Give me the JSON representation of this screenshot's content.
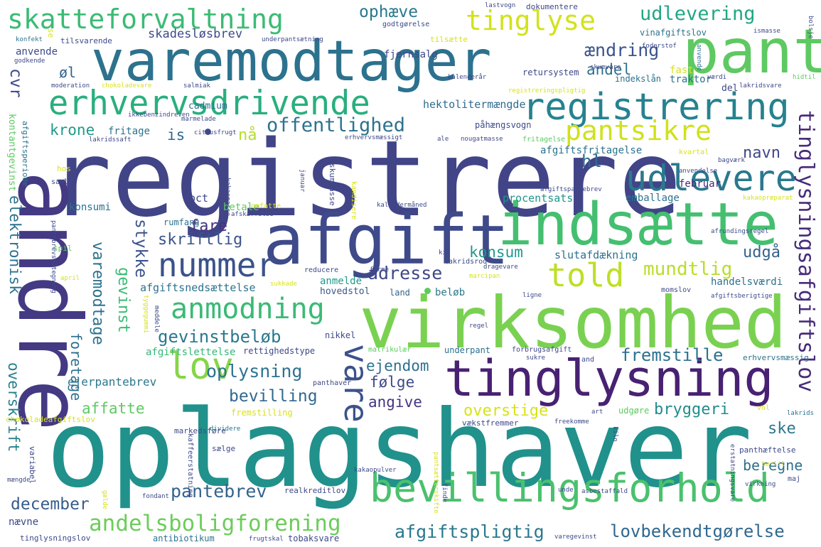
{
  "words": {
    "registrere": {
      "text": "registrere",
      "color": "#414487"
    },
    "oplagshaver": {
      "text": "oplagshaver",
      "color": "#21918c"
    },
    "virksomhed": {
      "text": "virksomhed",
      "color": "#7ad151"
    },
    "andre": {
      "text": "andre",
      "color": "#443983"
    },
    "afgift": {
      "text": "afgift",
      "color": "#3e4a89"
    },
    "varemodtager": {
      "text": "varemodtager",
      "color": "#2c728e"
    },
    "pant": {
      "text": "pant",
      "color": "#5ec962"
    },
    "indsaette": {
      "text": "indsætte",
      "color": "#44bf70"
    },
    "tinglysning": {
      "text": "tinglysning",
      "color": "#482173"
    },
    "bevillingsforhold": {
      "text": "bevillingsforhold",
      "color": "#4ac16d"
    },
    "registrering": {
      "text": "registrering",
      "color": "#26828e"
    },
    "erhvervsdrivende": {
      "text": "erhvervsdrivende",
      "color": "#29af7f"
    },
    "skatteforvaltning": {
      "text": "skatteforvaltning",
      "color": "#3bbb75"
    },
    "tinglyse": {
      "text": "tinglyse",
      "color": "#d2e21b"
    },
    "udlevere": {
      "text": "udlevere",
      "color": "#2a788e"
    },
    "pantsikre": {
      "text": "pantsikre",
      "color": "#d0e11c"
    },
    "nummer": {
      "text": "nummer",
      "color": "#3b528b"
    },
    "told": {
      "text": "told",
      "color": "#bddf26"
    },
    "anmodning": {
      "text": "anmodning",
      "color": "#3aba76"
    },
    "lov": {
      "text": "lov",
      "color": "#86d549"
    },
    "vare": {
      "text": "vare",
      "color": "#3b528b"
    },
    "andelsboligforening": {
      "text": "andelsboligforening",
      "color": "#6ccd5a"
    },
    "offentlighed": {
      "text": "offentlighed",
      "color": "#2c728e"
    },
    "tinglysningsafgiftslov": {
      "text": "tinglysningsafgiftslov",
      "color": "#472c7a"
    },
    "udlevering": {
      "text": "udlevering",
      "color": "#22a785"
    },
    "aendring": {
      "text": "ændring",
      "color": "#3a548c"
    },
    "mundtlig": {
      "text": "mundtlig",
      "color": "#b8de29"
    },
    "adresse": {
      "text": "adresse",
      "color": "#3f4788"
    },
    "gevinstbelob": {
      "text": "gevinstbeløb",
      "color": "#2a788e"
    },
    "oplysning": {
      "text": "oplysning",
      "color": "#2c738e"
    },
    "fremstille": {
      "text": "fremstille",
      "color": "#2c728e"
    },
    "pantebrev": {
      "text": "pantebrev",
      "color": "#33638d"
    },
    "december": {
      "text": "december",
      "color": "#365c8d"
    },
    "afgiftspligtig": {
      "text": "afgiftspligtig",
      "color": "#2a788e"
    },
    "lovbekendtgorelse": {
      "text": "lovbekendtgørelse",
      "color": "#31688e"
    },
    "overstige": {
      "text": "overstige",
      "color": "#d8e219"
    },
    "bryggeri": {
      "text": "bryggeri",
      "color": "#228c8d"
    },
    "angive": {
      "text": "angive",
      "color": "#453581"
    },
    "folge": {
      "text": "følge",
      "color": "#3e4989"
    },
    "ejendom": {
      "text": "ejendom",
      "color": "#2d708e"
    },
    "bevilling": {
      "text": "bevilling",
      "color": "#31688e"
    },
    "affatte": {
      "text": "affatte",
      "color": "#5ec962"
    },
    "ophaeve": {
      "text": "ophæve",
      "color": "#29798e"
    },
    "krone": {
      "text": "krone",
      "color": "#1f9a8a"
    },
    "konsum": {
      "text": "konsum",
      "color": "#1f988b"
    },
    "fare": {
      "text": "fare",
      "color": "#46337f"
    },
    "skriftlig": {
      "text": "skriftlig",
      "color": "#3a548c"
    },
    "stykke": {
      "text": "stykke",
      "color": "#3a538b"
    },
    "gevinst": {
      "text": "gevinst",
      "color": "#3bbb75"
    },
    "varemodtage": {
      "text": "varemodtage",
      "color": "#2c728e"
    },
    "foretage": {
      "text": "foretage",
      "color": "#2d708e"
    },
    "elektronisk": {
      "text": "elektronisk",
      "color": "#2c728e"
    },
    "overskrift": {
      "text": "overskrift",
      "color": "#27808e"
    },
    "cvr": {
      "text": "cvr",
      "color": "#3e4989"
    },
    "andel": {
      "text": "andel",
      "color": "#2d708e"
    },
    "ol": {
      "text": "øl",
      "color": "#33638d"
    },
    "na": {
      "text": "nå",
      "color": "#b5de2b"
    },
    "is": {
      "text": "is",
      "color": "#31688e"
    },
    "hl": {
      "text": "hl",
      "color": "#2f6c8e"
    },
    "navn": {
      "text": "navn",
      "color": "#3e4989"
    },
    "udga": {
      "text": "udgå",
      "color": "#33638d"
    },
    "ske": {
      "text": "ske",
      "color": "#2a788e"
    },
    "beregne": {
      "text": "beregne",
      "color": "#2d708e"
    },
    "skadeslosbrev": {
      "text": "skadesløsbrev",
      "color": "#3e4a89"
    },
    "fjernsalg": {
      "text": "fjernsalg",
      "color": "#3e4989"
    },
    "hektolitermaengde": {
      "text": "hektolitermængde",
      "color": "#2f6c8e"
    },
    "afgiftsfritagelse": {
      "text": "afgiftsfritagelse",
      "color": "#2c728e"
    },
    "emballage": {
      "text": "emballage",
      "color": "#2c728e"
    },
    "februar": {
      "text": "februar",
      "color": "#482677"
    },
    "procentsats": {
      "text": "procentsats",
      "color": "#1f968b"
    },
    "slutafdaekning": {
      "text": "slutafdækning",
      "color": "#2d708e"
    },
    "handelsvaerdi": {
      "text": "handelsværdi",
      "color": "#2d708e"
    },
    "afgiftsnedsaettelse": {
      "text": "afgiftsnedsættelse",
      "color": "#2c728e"
    },
    "afgiftslettelse": {
      "text": "afgiftslettelse",
      "color": "#35b779"
    },
    "rettighedstype": {
      "text": "rettighedstype",
      "color": "#3e4989"
    },
    "hovedstol": {
      "text": "hovedstol",
      "color": "#38598c"
    },
    "anmelde": {
      "text": "anmelde",
      "color": "#1e9c89"
    },
    "belob": {
      "text": "beløb",
      "color": "#2a788e"
    },
    "land": {
      "text": "land",
      "color": "#33638d"
    },
    "ejerpantebrev": {
      "text": "ejerpantebrev",
      "color": "#2a788e"
    },
    "konsumi": {
      "text": "konsumi",
      "color": "#2c728e"
    },
    "pct": {
      "text": "pct",
      "color": "#3e4989"
    },
    "betale": {
      "text": "betale",
      "color": "#5ec962"
    },
    "rumfang": {
      "text": "rumfang",
      "color": "#2c728e"
    },
    "fritage": {
      "text": "fritage",
      "color": "#2c728e"
    },
    "cadmium": {
      "text": "cadmium",
      "color": "#2c728e"
    },
    "pahaengsvogn": {
      "text": "påhængsvogn",
      "color": "#3e4989"
    },
    "anvende": {
      "text": "anvende",
      "color": "#3e4989"
    },
    "del": {
      "text": "del",
      "color": "#3e4989"
    },
    "fast": {
      "text": "fast",
      "color": "#d8e219"
    },
    "traktor": {
      "text": "traktor",
      "color": "#2c728e"
    },
    "indekslan": {
      "text": "indekslån",
      "color": "#2c728e"
    },
    "retursystem": {
      "text": "retursystem",
      "color": "#3e4989"
    },
    "dokumentere": {
      "text": "dokumentere",
      "color": "#3e4989"
    },
    "vinafgiftslov": {
      "text": "vinafgiftslov",
      "color": "#2c728e"
    },
    "godtgorelse": {
      "text": "godtgørelse",
      "color": "#3e4989"
    },
    "tilsaette": {
      "text": "tilsætte",
      "color": "#d8e219"
    },
    "nikkel": {
      "text": "nikkel",
      "color": "#3e4989"
    },
    "nævne": {
      "text": "nævne",
      "color": "#3e4989"
    },
    "antibiotikum": {
      "text": "antibiotikum",
      "color": "#2c728e"
    },
    "tobaksvare": {
      "text": "tobaksvare",
      "color": "#3e4989"
    },
    "udgore": {
      "text": "udgøre",
      "color": "#5ec962"
    },
    "fremstilling": {
      "text": "fremstilling",
      "color": "#d8e219"
    },
    "vaekstfremmer": {
      "text": "vækstfremmer",
      "color": "#3e4989"
    },
    "underpant": {
      "text": "underpant",
      "color": "#2c728e"
    },
    "saelge": {
      "text": "sælge",
      "color": "#3e4989"
    },
    "tinglysningslov": {
      "text": "tinglysningslov",
      "color": "#3e4989"
    },
    "konfekt": {
      "text": "konfekt",
      "color": "#2c728e"
    },
    "godkende": {
      "text": "godkende",
      "color": "#3e4989"
    },
    "anvende2": {
      "text": "anvende",
      "color": "#2c728e"
    },
    "kontantgevinst": {
      "text": "kontantgevinst",
      "color": "#5ec962"
    },
    "afgiftsperiode": {
      "text": "afgiftsperiode",
      "color": "#2c728e"
    },
    "samle": {
      "text": "samle",
      "color": "#3e4989"
    },
    "hos": {
      "text": "hos",
      "color": "#d8e219"
    },
    "spil": {
      "text": "spil",
      "color": "#5ec962"
    },
    "variabel": {
      "text": "variabel",
      "color": "#3e4989"
    },
    "mangde": {
      "text": "mængde",
      "color": "#3e4989"
    },
    "chokoladeafgiftslov": {
      "text": "chokoladeafgiftslov",
      "color": "#d8e219"
    },
    "markedsfore": {
      "text": "markedsføre",
      "color": "#3e4989"
    },
    "kaffeerstatning": {
      "text": "kaffeerstatning",
      "color": "#3e4989"
    },
    "dividere": {
      "text": "dividere",
      "color": "#2c728e"
    },
    "realkreditlov": {
      "text": "realkreditlov",
      "color": "#3e4989"
    },
    "fondant": {
      "text": "fondant",
      "color": "#3e4989"
    },
    "gaelde": {
      "text": "gælde",
      "color": "#d8e219"
    },
    "matrikulaer": {
      "text": "matrikulær",
      "color": "#5ec962"
    },
    "forbrugsafgift": {
      "text": "forbrugsafgift",
      "color": "#3e4989"
    },
    "erhvervsmaessig": {
      "text": "erhvervsmæssig",
      "color": "#2c728e"
    },
    "sukre": {
      "text": "sukre",
      "color": "#3e4989"
    },
    "and": {
      "text": "and",
      "color": "#3e4989"
    },
    "panthaver": {
      "text": "panthaver",
      "color": "#3e4989"
    },
    "panthaeftelse": {
      "text": "panthæftelse",
      "color": "#3e4989"
    },
    "vol": {
      "text": "vol",
      "color": "#d8e219"
    },
    "art": {
      "text": "art",
      "color": "#3e4989"
    },
    "lakrids": {
      "text": "lakrids",
      "color": "#2c728e"
    },
    "freekomme": {
      "text": "freekomme",
      "color": "#3e4989"
    },
    "maj": {
      "text": "maj",
      "color": "#3e4989"
    },
    "virkning": {
      "text": "virkning",
      "color": "#3e4989"
    },
    "herlil": {
      "text": "herlil",
      "color": "#d8e219"
    },
    "kakaopulver": {
      "text": "kakaopulver",
      "color": "#3e4989"
    },
    "unde": {
      "text": "unde",
      "color": "#3e4989"
    },
    "asbestaffald": {
      "text": "asbestaffald",
      "color": "#3e4989"
    },
    "varegevinst": {
      "text": "varegevinst",
      "color": "#3e4989"
    },
    "frugtskal": {
      "text": "frugtskal",
      "color": "#3e4989"
    },
    "regel": {
      "text": "regel",
      "color": "#3e4989"
    },
    "ligne": {
      "text": "ligne",
      "color": "#3e4989"
    },
    "momslov": {
      "text": "momslov",
      "color": "#3e4989"
    },
    "afrundingsregel": {
      "text": "afrundingsregel",
      "color": "#3e4989"
    },
    "lakridsrod": {
      "text": "lakridsrod",
      "color": "#3e4989"
    },
    "dragevare": {
      "text": "dragevare",
      "color": "#3e4989"
    },
    "reducere": {
      "text": "reducere",
      "color": "#3e4989"
    },
    "forme": {
      "text": "forme",
      "color": "#3e4989"
    },
    "marcipan": {
      "text": "marcipan",
      "color": "#d8e219"
    },
    "kakaopraeparat": {
      "text": "kakaopræparat",
      "color": "#d8e219"
    },
    "afgiftspantebrev": {
      "text": "afgiftspantebrev",
      "color": "#3e4989"
    },
    "kalendermaned": {
      "text": "kalendermåned",
      "color": "#3e4989"
    },
    "omfatte": {
      "text": "omfatte",
      "color": "#d8e219"
    },
    "afskaffelse": {
      "text": "afskaffelse",
      "color": "#3e4989"
    },
    "kandisere": {
      "text": "kandisere",
      "color": "#d8e219"
    },
    "skummasse": {
      "text": "skummasse",
      "color": "#3e4989"
    },
    "januar": {
      "text": "januar",
      "color": "#3e4989"
    },
    "kakaomasse": {
      "text": "kakaomasse",
      "color": "#3e4989"
    },
    "kvartal": {
      "text": "kvartal",
      "color": "#d8e219"
    },
    "bagvaerk": {
      "text": "bagværk",
      "color": "#3e4989"
    },
    "anvendelse": {
      "text": "anvendelse",
      "color": "#3e4989"
    },
    "fritagelse": {
      "text": "fritagelse",
      "color": "#5ec962"
    },
    "erhvervsmassigt": {
      "text": "erhvervsmæssigt",
      "color": "#3e4989"
    },
    "nougatmasse": {
      "text": "nougatmasse",
      "color": "#3e4989"
    },
    "ale": {
      "text": "ale",
      "color": "#3e4989"
    },
    "citrusfrugt": {
      "text": "citrusfrugt",
      "color": "#3e4989"
    },
    "lakridssaft": {
      "text": "lakridssaft",
      "color": "#3e4989"
    },
    "ikkebenzindreven": {
      "text": "ikkebenzindreven",
      "color": "#3e4989"
    },
    "marmelade": {
      "text": "marmelade",
      "color": "#3e4989"
    },
    "moderation": {
      "text": "moderation",
      "color": "#3e4989"
    },
    "chokoladevare": {
      "text": "chokoladevare",
      "color": "#d8e219"
    },
    "salmiak": {
      "text": "salmiak",
      "color": "#3e4989"
    },
    "kalenderar": {
      "text": "kalenderår",
      "color": "#3e4989"
    },
    "registreringspligtig": {
      "text": "registreringspligtig",
      "color": "#d8e219"
    },
    "skumvare": {
      "text": "skumvare",
      "color": "#3e4989"
    },
    "vaerdi": {
      "text": "værdi",
      "color": "#3e4989"
    },
    "lakridsvare": {
      "text": "lakridsvare",
      "color": "#3e4989"
    },
    "hidtil": {
      "text": "hidtil",
      "color": "#5ec962"
    },
    "lastvogn": {
      "text": "lastvogn",
      "color": "#3e4989"
    },
    "foderstof": {
      "text": "foderstof",
      "color": "#3e4989"
    },
    "ismasse": {
      "text": "ismasse",
      "color": "#3e4989"
    },
    "bolsje": {
      "text": "bolsje",
      "color": "#3e4989"
    },
    "tilsvarende": {
      "text": "tilsvarende",
      "color": "#3e4989"
    },
    "underpantsaetning": {
      "text": "underpantsætning",
      "color": "#3e4989"
    },
    "se": {
      "text": "se",
      "color": "#d8e219"
    },
    "kik": {
      "text": "kik",
      "color": "#3e4989"
    },
    "april": {
      "text": "april",
      "color": "#d8e219"
    },
    "sukkade": {
      "text": "sukkade",
      "color": "#d8e219"
    },
    "meddele": {
      "text": "meddele",
      "color": "#3e4989"
    },
    "tyggegummi": {
      "text": "tyggegummi",
      "color": "#d8e219"
    },
    "pantebrevspategning": {
      "text": "pantebrevspåtegning",
      "color": "#3e4989"
    },
    "afgiftsberigtige": {
      "text": "afgiftsberigtige",
      "color": "#3e4989"
    },
    "erstatningsvare": {
      "text": "erstatningsvare",
      "color": "#3e4989"
    },
    "pantsaetterskifte": {
      "text": "pantsætterskifte",
      "color": "#d8e219"
    },
    "kilo": {
      "text": "kilo",
      "color": "#3e4989"
    },
    "finde": {
      "text": "finde",
      "color": "#3e4989"
    }
  }
}
